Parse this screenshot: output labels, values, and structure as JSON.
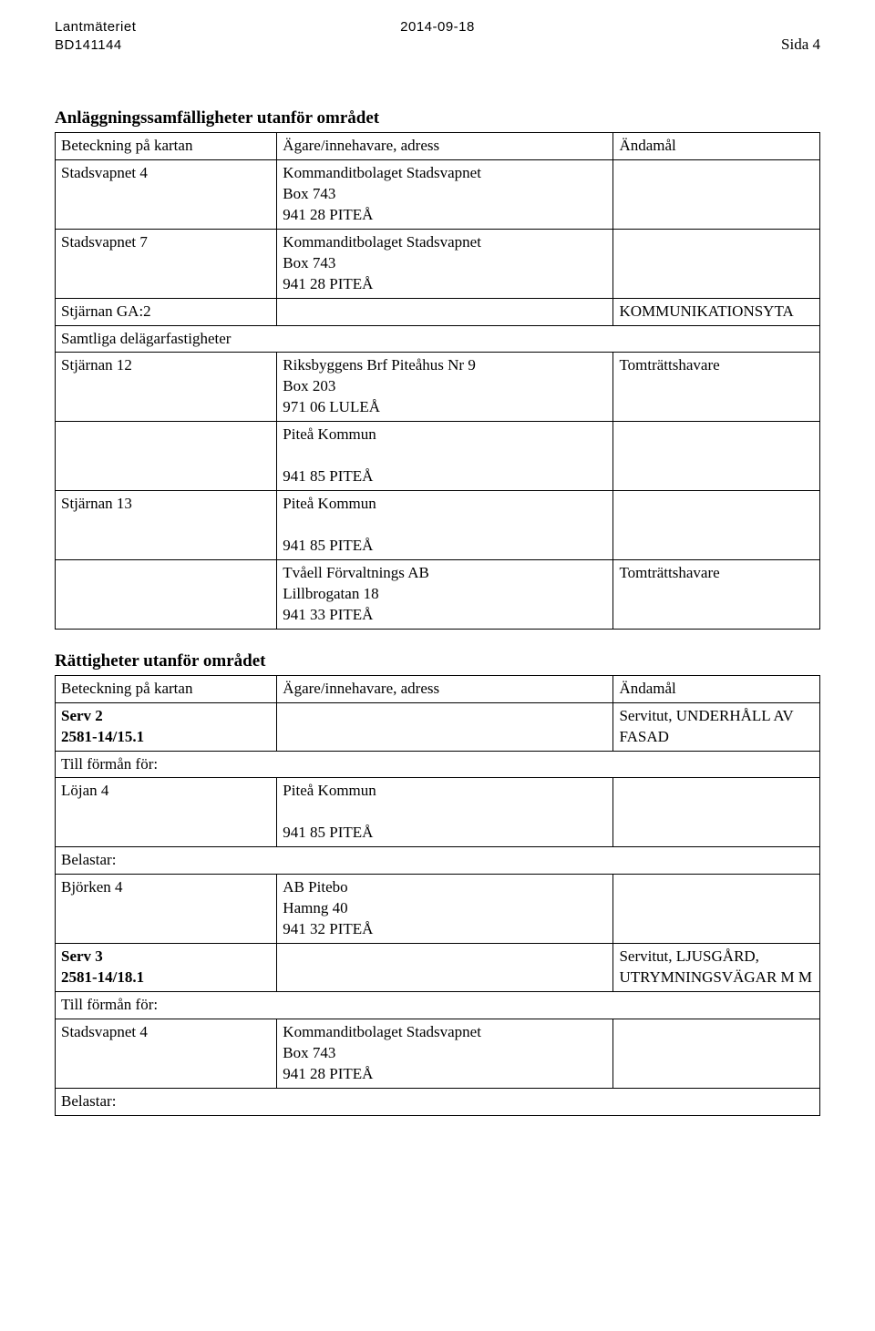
{
  "header": {
    "org": "Lantmäteriet",
    "ref": "BD141144",
    "date": "2014-09-18",
    "page_label": "Sida 4"
  },
  "section1": {
    "title": "Anläggningssamfälligheter utanför området",
    "rows": [
      {
        "c1": "Beteckning på kartan",
        "c2": "Ägare/innehavare, adress",
        "c3": "Ändamål"
      },
      {
        "c1": "Stadsvapnet 4",
        "c2": "Kommanditbolaget Stadsvapnet\nBox 743\n941 28 PITEÅ",
        "c3": ""
      },
      {
        "c1": "Stadsvapnet 7",
        "c2": "Kommanditbolaget Stadsvapnet\nBox 743\n941 28 PITEÅ",
        "c3": ""
      },
      {
        "c1": "Stjärnan GA:2",
        "c2": "",
        "c3": "KOMMUNIKATIONSYTA"
      },
      {
        "span": true,
        "c1": "Samtliga delägarfastigheter"
      },
      {
        "c1": "Stjärnan 12",
        "c2": "Riksbyggens Brf Piteåhus Nr 9\nBox 203\n971 06 LULEÅ",
        "c3": "Tomträttshavare"
      },
      {
        "c1": "",
        "c2": "Piteå Kommun\n\n941 85 PITEÅ",
        "c3": ""
      },
      {
        "c1": "Stjärnan 13",
        "c2": "Piteå Kommun\n\n941 85 PITEÅ",
        "c3": ""
      },
      {
        "c1": "",
        "c2": "Tvåell Förvaltnings AB\nLillbrogatan 18\n941 33 PITEÅ",
        "c3": "Tomträttshavare"
      }
    ]
  },
  "section2": {
    "title": "Rättigheter utanför området",
    "rows": [
      {
        "c1": "Beteckning på kartan",
        "c2": "Ägare/innehavare, adress",
        "c3": "Ändamål"
      },
      {
        "c1_bold": true,
        "c1": "Serv 2\n2581-14/15.1",
        "c2": "",
        "c3": "Servitut, UNDERHÅLL AV FASAD"
      },
      {
        "span": true,
        "c1": "Till förmån för:"
      },
      {
        "c1": "Löjan 4",
        "c2": "Piteå Kommun\n\n941 85 PITEÅ",
        "c3": ""
      },
      {
        "span": true,
        "c1": "Belastar:"
      },
      {
        "c1": "Björken 4",
        "c2": "AB Pitebo\nHamng 40\n941 32 PITEÅ",
        "c3": ""
      },
      {
        "c1_bold": true,
        "c1": "Serv 3\n2581-14/18.1",
        "c2": "",
        "c3": "Servitut, LJUSGÅRD, UTRYMNINGSVÄGAR M M"
      },
      {
        "span": true,
        "c1": "Till förmån för:"
      },
      {
        "c1": "Stadsvapnet 4",
        "c2": "Kommanditbolaget Stadsvapnet\nBox 743\n941 28 PITEÅ",
        "c3": ""
      },
      {
        "span": true,
        "c1": "Belastar:"
      }
    ]
  }
}
